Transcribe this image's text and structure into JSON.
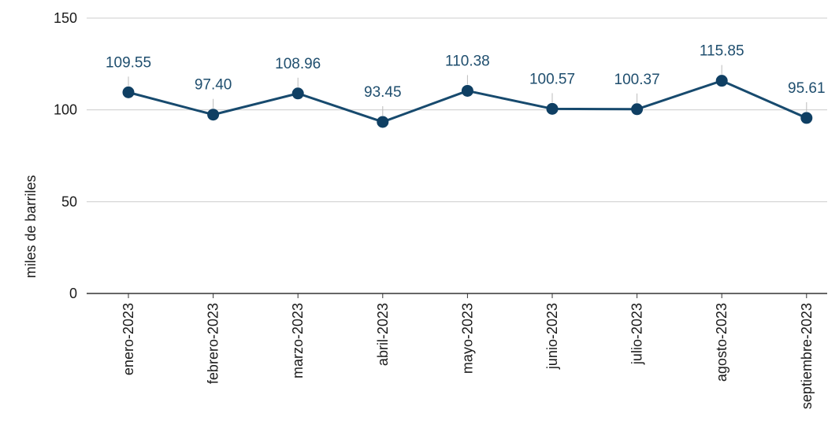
{
  "chart_data": {
    "type": "line",
    "title": "",
    "xlabel": "",
    "ylabel": "miles de barriles",
    "categories": [
      "enero-2023",
      "febrero-2023",
      "marzo-2023",
      "abril-2023",
      "mayo-2023",
      "junio-2023",
      "julio-2023",
      "agosto-2023",
      "septiembre-2023"
    ],
    "series": [
      {
        "values": [
          109.55,
          97.4,
          108.96,
          93.45,
          110.38,
          100.57,
          100.37,
          115.85,
          95.61
        ],
        "labels": [
          "109.55",
          "97.40",
          "108.96",
          "93.45",
          "110.38",
          "100.57",
          "100.37",
          "115.85",
          "95.61"
        ]
      }
    ],
    "ylim": [
      0,
      150
    ],
    "yticks": [
      0,
      50,
      100,
      150
    ],
    "ytick_labels": [
      "0",
      "50",
      "100",
      "150"
    ],
    "grid": true,
    "colors": {
      "line": "#174a6e",
      "marker": "#0f3f63",
      "grid": "#cccccc",
      "axis": "#333333",
      "label": "#1f4e6e"
    }
  }
}
